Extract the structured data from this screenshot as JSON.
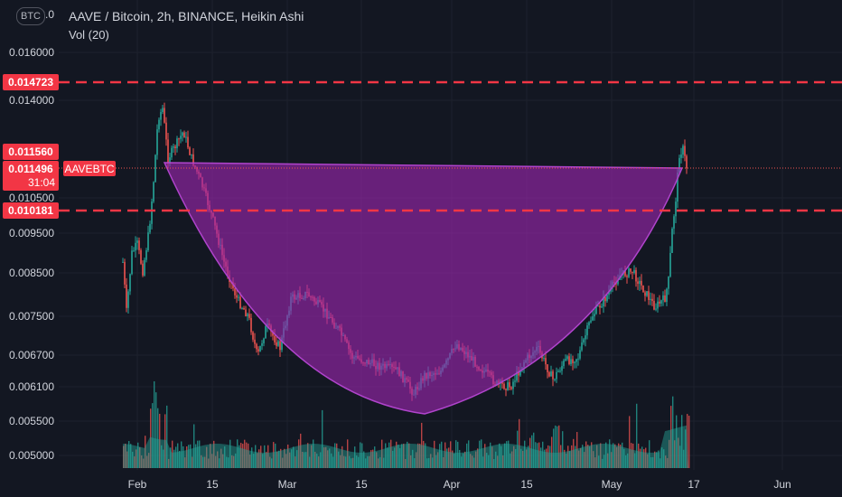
{
  "header": {
    "title": "AAVE / Bitcoin, 2h, BINANCE, Heikin Ashi",
    "volume_label": "Vol (20)",
    "currency": "BTC"
  },
  "price_axis": {
    "ticks": [
      "0.016000",
      "0.014000",
      "0.010500",
      "0.009500",
      "0.008500",
      "0.007500",
      "0.006700",
      "0.006100",
      "0.005500",
      "0.005000"
    ],
    "top_partial": "0.0"
  },
  "time_axis": {
    "ticks": [
      "Feb",
      "15",
      "Mar",
      "15",
      "Apr",
      "15",
      "May",
      "17",
      "Jun"
    ]
  },
  "levels": [
    {
      "label": "0.014723",
      "color": "#f23645"
    },
    {
      "label": "0.010181",
      "color": "#f23645"
    }
  ],
  "markers": {
    "high_label": "0.011560",
    "last_price": "0.011496",
    "countdown": "31:04",
    "symbol": "AAVEBTC"
  },
  "colors": {
    "background": "#131722",
    "up": "#26a69a",
    "down": "#ef5350",
    "pattern_fill": "#9c27b0",
    "level_line": "#f23645",
    "text": "#d1d4dc"
  },
  "chart_data": {
    "type": "candlestick",
    "symbol": "AAVEBTC",
    "style": "Heikin Ashi",
    "ylim": [
      0.0048,
      0.0172
    ],
    "series": [
      {
        "name": "AAVEBTC",
        "x": [
          "Feb",
          "15",
          "Mar",
          "15",
          "Apr",
          "15",
          "May",
          "17"
        ],
        "values": [
          0.0085,
          0.012,
          0.0072,
          0.0068,
          0.0062,
          0.0064,
          0.008,
          0.0115
        ]
      }
    ],
    "levels": [
      0.014723,
      0.010181
    ]
  }
}
